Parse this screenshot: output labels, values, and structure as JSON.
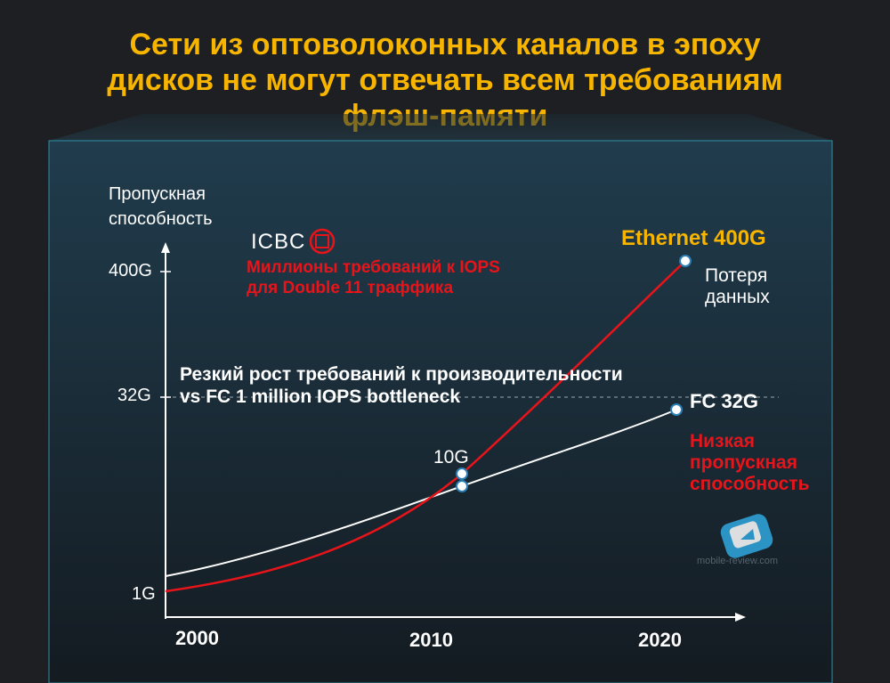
{
  "title_lines": [
    "Сети из оптоволоконных каналов в эпоху",
    "дисков не могут отвечать всем требованиям",
    "флэш-памяти"
  ],
  "colors": {
    "title": "#f7b500",
    "ethernet_line": "#e8141a",
    "fc_line": "#ffffff",
    "accent_red": "#e8141a",
    "panel_top": "#1f3a4a",
    "panel_bottom": "#141c22"
  },
  "icbc": {
    "logo_text": "ICBC",
    "note_lines": [
      "Миллионы требований к IOPS",
      "для Double 11 траффика"
    ]
  },
  "bottleneck_note_lines": [
    "Резкий рост требований к производительности",
    "vs FC 1 million IOPS bottleneck"
  ],
  "ethernet_label": "Ethernet 400G",
  "data_loss_lines": [
    "Потеря",
    "данных"
  ],
  "fc_label": "FC 32G",
  "low_bw_lines": [
    "Низкая",
    "пропускная",
    "способность"
  ],
  "point_label_10g": "10G",
  "watermark_text": "mobile-review.com",
  "chart_data": {
    "type": "line",
    "ylabel_lines": [
      "Пропускная",
      "способность"
    ],
    "xlabel": "",
    "x_ticks": [
      "2000",
      "2010",
      "2020"
    ],
    "y_ticks": [
      "1G",
      "32G",
      "400G"
    ],
    "xlim": [
      2000,
      2022
    ],
    "y_scale": "categorical",
    "grid": false,
    "series": [
      {
        "name": "Ethernet 400G",
        "color": "#e8141a",
        "points": [
          {
            "x": 2000,
            "y": "1G"
          },
          {
            "x": 2011,
            "y": "10G"
          },
          {
            "x": 2020,
            "y": "400G"
          }
        ]
      },
      {
        "name": "FC 32G",
        "color": "#ffffff",
        "points": [
          {
            "x": 2000,
            "y": "1G"
          },
          {
            "x": 2011,
            "y": "10G"
          },
          {
            "x": 2020,
            "y": "32G"
          }
        ]
      }
    ],
    "reference_line": {
      "y": "32G",
      "style": "dashed"
    }
  }
}
